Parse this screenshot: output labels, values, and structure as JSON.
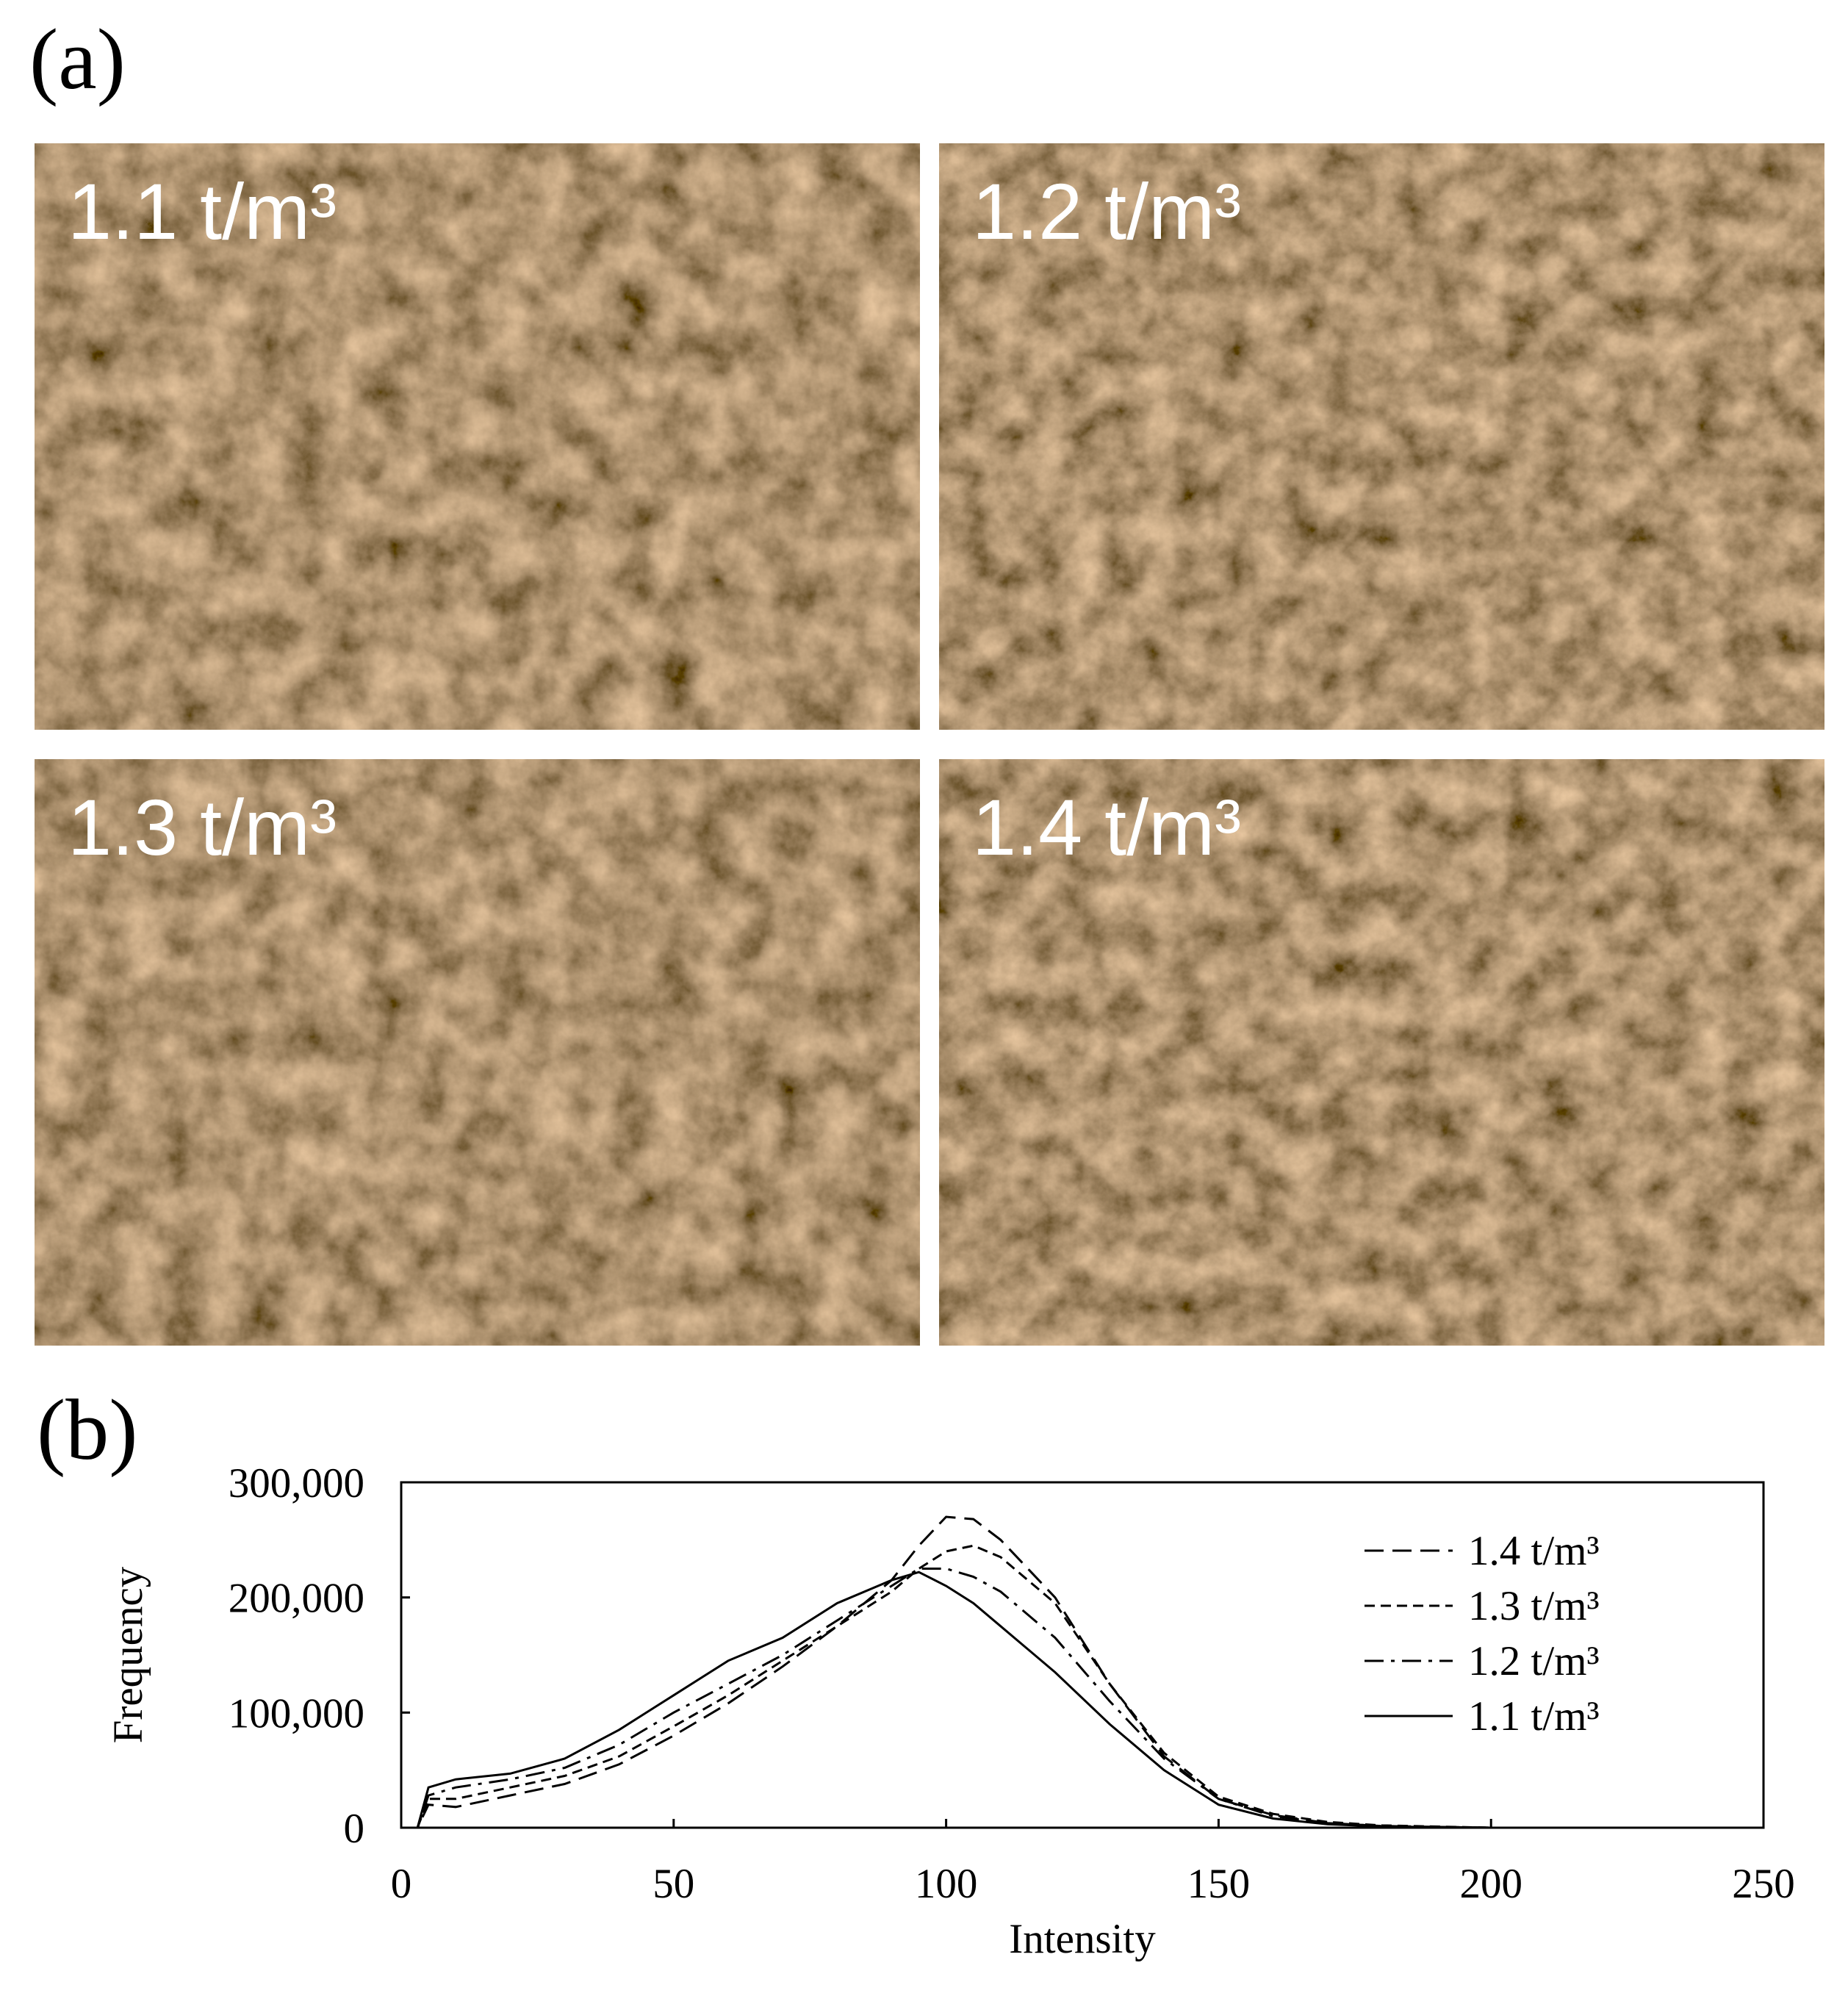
{
  "panel_a": {
    "label": "(a)",
    "photos": [
      {
        "label": "1.1 t/m³"
      },
      {
        "label": "1.2 t/m³"
      },
      {
        "label": "1.3 t/m³"
      },
      {
        "label": "1.4 t/m³"
      }
    ]
  },
  "chart_data": {
    "type": "line",
    "panel_label": "(b)",
    "x_label": "Intensity",
    "y_label": "Frequency",
    "x": [
      0,
      3,
      5,
      10,
      20,
      30,
      40,
      50,
      60,
      70,
      80,
      90,
      95,
      100,
      105,
      110,
      120,
      130,
      140,
      150,
      160,
      170,
      180,
      200,
      250
    ],
    "series": [
      {
        "name": "1.4 t/m³",
        "color": "#000000",
        "dash": "long-dash",
        "values": [
          0,
          0,
          20000,
          18000,
          28000,
          38000,
          55000,
          80000,
          108000,
          140000,
          175000,
          215000,
          245000,
          270000,
          268000,
          250000,
          200000,
          125000,
          62000,
          25000,
          11000,
          4000,
          1500,
          0,
          0
        ]
      },
      {
        "name": "1.3 t/m³",
        "color": "#000000",
        "dash": "short-dash",
        "values": [
          0,
          0,
          25000,
          25000,
          35000,
          45000,
          62000,
          88000,
          115000,
          145000,
          175000,
          205000,
          225000,
          240000,
          245000,
          235000,
          195000,
          125000,
          65000,
          27000,
          12000,
          5000,
          2000,
          0,
          0
        ]
      },
      {
        "name": "1.2 t/m³",
        "color": "#000000",
        "dash": "dash-dot",
        "values": [
          0,
          0,
          28000,
          35000,
          42000,
          52000,
          72000,
          100000,
          125000,
          150000,
          180000,
          210000,
          225000,
          225000,
          218000,
          205000,
          165000,
          110000,
          60000,
          25000,
          10000,
          4000,
          1500,
          0,
          0
        ]
      },
      {
        "name": "1.1 t/m³",
        "color": "#000000",
        "dash": "solid",
        "values": [
          0,
          0,
          35000,
          42000,
          47000,
          60000,
          85000,
          115000,
          145000,
          165000,
          195000,
          215000,
          222000,
          210000,
          195000,
          175000,
          135000,
          90000,
          50000,
          20000,
          8000,
          3000,
          1000,
          0,
          0
        ]
      }
    ],
    "xlim": [
      0,
      250
    ],
    "xticks": [
      0,
      50,
      100,
      150,
      200,
      250
    ],
    "ylim": [
      0,
      300000
    ],
    "yticks": [
      0,
      {
        "value": 100000,
        "label": "100,000"
      },
      {
        "value": 200000,
        "label": "200,000"
      },
      {
        "value": 300000,
        "label": "300,000"
      }
    ],
    "grid": false,
    "legend": "upper right"
  }
}
